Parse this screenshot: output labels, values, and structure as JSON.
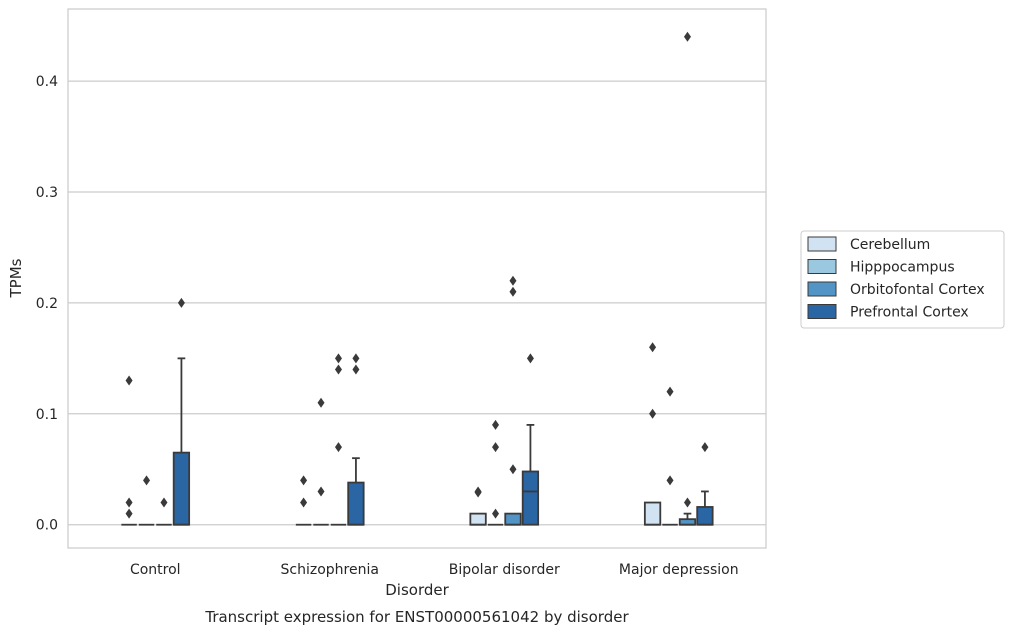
{
  "chart_data": {
    "type": "box",
    "xlabel": "Disorder",
    "ylabel": "TPMs",
    "caption": "Transcript expression for ENST00000561042 by disorder",
    "ylim": [
      -0.021,
      0.465
    ],
    "yticks": [
      0.0,
      0.1,
      0.2,
      0.3,
      0.4
    ],
    "ytick_labels": [
      "0.0",
      "0.1",
      "0.2",
      "0.3",
      "0.4"
    ],
    "grid": "horizontal",
    "legend_position": "right",
    "categories": [
      "Control",
      "Schizophrenia",
      "Bipolar disorder",
      "Major depression"
    ],
    "series": [
      {
        "name": "Cerebellum",
        "color": "#d1e2f2",
        "boxes": [
          {
            "q1": 0,
            "median": 0,
            "q3": 0,
            "whisker_low": 0,
            "whisker_high": 0,
            "outliers": [
              0.13,
              0.02,
              0.01
            ]
          },
          {
            "q1": 0,
            "median": 0,
            "q3": 0,
            "whisker_low": 0,
            "whisker_high": 0,
            "outliers": [
              0.04,
              0.02
            ]
          },
          {
            "q1": 0,
            "median": 0,
            "q3": 0.01,
            "whisker_low": 0,
            "whisker_high": 0.01,
            "outliers": [
              0.03,
              0.029
            ]
          },
          {
            "q1": 0,
            "median": 0,
            "q3": 0.02,
            "whisker_low": 0,
            "whisker_high": 0.02,
            "outliers": [
              0.16,
              0.1
            ]
          }
        ]
      },
      {
        "name": "Hipppocampus",
        "color": "#9ac8e1",
        "boxes": [
          {
            "q1": 0,
            "median": 0,
            "q3": 0,
            "whisker_low": 0,
            "whisker_high": 0,
            "outliers": [
              0.04
            ]
          },
          {
            "q1": 0,
            "median": 0,
            "q3": 0,
            "whisker_low": 0,
            "whisker_high": 0,
            "outliers": [
              0.11,
              0.03
            ]
          },
          {
            "q1": 0,
            "median": 0,
            "q3": 0,
            "whisker_low": 0,
            "whisker_high": 0,
            "outliers": [
              0.09,
              0.07,
              0.01
            ]
          },
          {
            "q1": 0,
            "median": 0,
            "q3": 0,
            "whisker_low": 0,
            "whisker_high": 0,
            "outliers": [
              0.12,
              0.04
            ]
          }
        ]
      },
      {
        "name": "Orbitofontal Cortex",
        "color": "#5294c6",
        "boxes": [
          {
            "q1": 0,
            "median": 0,
            "q3": 0,
            "whisker_low": 0,
            "whisker_high": 0,
            "outliers": [
              0.02
            ]
          },
          {
            "q1": 0,
            "median": 0,
            "q3": 0,
            "whisker_low": 0,
            "whisker_high": 0,
            "outliers": [
              0.15,
              0.14,
              0.07
            ]
          },
          {
            "q1": 0,
            "median": 0,
            "q3": 0.01,
            "whisker_low": 0,
            "whisker_high": 0.01,
            "outliers": [
              0.22,
              0.21,
              0.05
            ]
          },
          {
            "q1": 0,
            "median": 0,
            "q3": 0.005,
            "whisker_low": 0,
            "whisker_high": 0.01,
            "outliers": [
              0.44,
              0.02
            ]
          }
        ]
      },
      {
        "name": "Prefrontal Cortex",
        "color": "#2a65a4",
        "boxes": [
          {
            "q1": 0,
            "median": 0,
            "q3": 0.065,
            "whisker_low": 0,
            "whisker_high": 0.15,
            "outliers": [
              0.2
            ]
          },
          {
            "q1": 0,
            "median": 0,
            "q3": 0.038,
            "whisker_low": 0,
            "whisker_high": 0.06,
            "outliers": [
              0.15,
              0.14
            ]
          },
          {
            "q1": 0,
            "median": 0.03,
            "q3": 0.048,
            "whisker_low": 0,
            "whisker_high": 0.09,
            "outliers": [
              0.15
            ]
          },
          {
            "q1": 0,
            "median": 0,
            "q3": 0.016,
            "whisker_low": 0,
            "whisker_high": 0.03,
            "outliers": [
              0.07
            ]
          }
        ]
      }
    ]
  }
}
